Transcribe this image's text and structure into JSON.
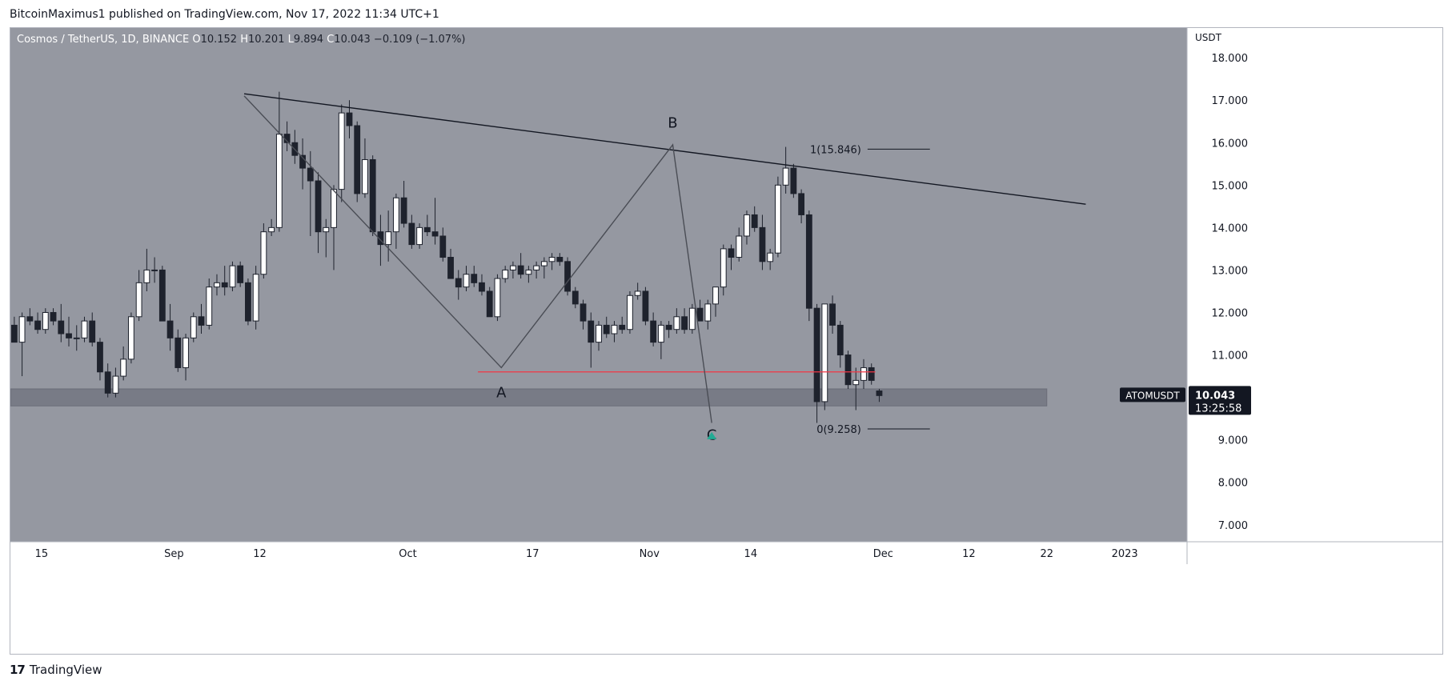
{
  "header": {
    "published_by": "BitcoinMaximus1 published on TradingView.com, Nov 17, 2022 11:34 UTC+1"
  },
  "legend": {
    "symbol": "Cosmos / TetherUS, 1D, BINANCE",
    "o_label": "O",
    "o_value": "10.152",
    "h_label": "H",
    "h_value": "10.201",
    "l_label": "L",
    "l_value": "9.894",
    "c_label": "C",
    "c_value": "10.043",
    "change": "−0.109 (−1.07%)"
  },
  "footer": {
    "logo_mark": "17",
    "brand": "TradingView"
  },
  "colors": {
    "plot_bg": "#9598a1",
    "bull": "#ffffff",
    "bear": "#1e222d",
    "wick": "#1e222d",
    "support_zone": "#787b86",
    "red_line": "#f23645",
    "trend_line": "#131722",
    "wave_line": "#4a4d55",
    "price_tag_bg": "#131722",
    "bottom_marker": "#22ab94"
  },
  "chart_data": {
    "type": "candlestick",
    "title": "Cosmos / TetherUS, 1D, BINANCE",
    "y_axis_unit": "USDT",
    "ylim": [
      6.6,
      18.7
    ],
    "y_ticks": [
      "18.000",
      "17.000",
      "16.000",
      "15.000",
      "14.000",
      "13.000",
      "12.000",
      "11.000",
      "10.000",
      "9.000",
      "8.000",
      "7.000"
    ],
    "y_tick_values": [
      18,
      17,
      16,
      15,
      14,
      13,
      12,
      11,
      10,
      9,
      8,
      7
    ],
    "x_start_date": "2022-08-11",
    "x_end_date": "2023-01-09",
    "x_ticks": [
      {
        "label": "15",
        "date": "2022-08-15"
      },
      {
        "label": "Sep",
        "date": "2022-09-01"
      },
      {
        "label": "12",
        "date": "2022-09-12"
      },
      {
        "label": "Oct",
        "date": "2022-10-01"
      },
      {
        "label": "17",
        "date": "2022-10-17"
      },
      {
        "label": "Nov",
        "date": "2022-11-01"
      },
      {
        "label": "14",
        "date": "2022-11-14"
      },
      {
        "label": "Dec",
        "date": "2022-12-01"
      },
      {
        "label": "12",
        "date": "2022-12-12"
      },
      {
        "label": "22",
        "date": "2022-12-22"
      },
      {
        "label": "2023",
        "date": "2023-01-01"
      }
    ],
    "candles_start": "2022-08-11",
    "candles": [
      [
        11.7,
        11.9,
        11.3,
        11.3
      ],
      [
        11.3,
        12.0,
        10.5,
        11.9
      ],
      [
        11.9,
        12.1,
        11.7,
        11.8
      ],
      [
        11.8,
        12.0,
        11.5,
        11.6
      ],
      [
        11.6,
        12.1,
        11.5,
        12.0
      ],
      [
        12.0,
        12.1,
        11.7,
        11.8
      ],
      [
        11.8,
        12.2,
        11.3,
        11.5
      ],
      [
        11.5,
        11.9,
        11.2,
        11.4
      ],
      [
        11.4,
        11.7,
        11.1,
        11.4
      ],
      [
        11.4,
        11.9,
        11.3,
        11.8
      ],
      [
        11.8,
        12.0,
        11.2,
        11.3
      ],
      [
        11.3,
        11.4,
        10.4,
        10.6
      ],
      [
        10.6,
        10.8,
        10.0,
        10.1
      ],
      [
        10.1,
        10.7,
        10.0,
        10.5
      ],
      [
        10.5,
        11.2,
        10.4,
        10.9
      ],
      [
        10.9,
        12.0,
        10.8,
        11.9
      ],
      [
        11.9,
        13.0,
        11.8,
        12.7
      ],
      [
        12.7,
        13.5,
        12.5,
        13.0
      ],
      [
        13.0,
        13.3,
        12.7,
        13.0
      ],
      [
        13.0,
        13.1,
        11.8,
        11.8
      ],
      [
        11.8,
        12.2,
        11.1,
        11.4
      ],
      [
        11.4,
        11.6,
        10.6,
        10.7
      ],
      [
        10.7,
        11.5,
        10.4,
        11.4
      ],
      [
        11.4,
        12.0,
        11.3,
        11.9
      ],
      [
        11.9,
        12.2,
        11.5,
        11.7
      ],
      [
        11.7,
        12.8,
        11.6,
        12.6
      ],
      [
        12.6,
        12.9,
        12.4,
        12.7
      ],
      [
        12.7,
        13.1,
        12.4,
        12.6
      ],
      [
        12.6,
        13.2,
        12.5,
        13.1
      ],
      [
        13.1,
        13.2,
        12.6,
        12.7
      ],
      [
        12.7,
        12.8,
        11.7,
        11.8
      ],
      [
        11.8,
        13.1,
        11.6,
        12.9
      ],
      [
        12.9,
        14.1,
        12.8,
        13.9
      ],
      [
        13.9,
        14.2,
        13.8,
        14.0
      ],
      [
        14.0,
        17.2,
        13.9,
        16.2
      ],
      [
        16.2,
        16.5,
        15.8,
        16.0
      ],
      [
        16.0,
        16.3,
        15.5,
        15.7
      ],
      [
        15.7,
        16.1,
        14.9,
        15.4
      ],
      [
        15.4,
        15.8,
        13.8,
        15.1
      ],
      [
        15.1,
        15.3,
        13.4,
        13.9
      ],
      [
        13.9,
        14.2,
        13.3,
        14.0
      ],
      [
        14.0,
        15.0,
        13.0,
        14.9
      ],
      [
        14.9,
        16.9,
        14.6,
        16.7
      ],
      [
        16.7,
        17.0,
        16.1,
        16.4
      ],
      [
        16.4,
        16.5,
        14.6,
        14.8
      ],
      [
        14.8,
        16.1,
        14.7,
        15.6
      ],
      [
        15.6,
        15.7,
        13.8,
        13.9
      ],
      [
        13.9,
        14.3,
        13.1,
        13.6
      ],
      [
        13.6,
        14.4,
        13.2,
        13.9
      ],
      [
        13.9,
        14.8,
        13.5,
        14.7
      ],
      [
        14.7,
        15.1,
        14.0,
        14.1
      ],
      [
        14.1,
        14.3,
        13.5,
        13.6
      ],
      [
        13.6,
        14.1,
        13.5,
        14.0
      ],
      [
        14.0,
        14.3,
        13.8,
        13.9
      ],
      [
        13.9,
        14.7,
        13.6,
        13.8
      ],
      [
        13.8,
        14.0,
        13.2,
        13.3
      ],
      [
        13.3,
        13.5,
        12.8,
        12.8
      ],
      [
        12.8,
        13.0,
        12.3,
        12.6
      ],
      [
        12.6,
        13.1,
        12.5,
        12.9
      ],
      [
        12.9,
        13.1,
        12.6,
        12.7
      ],
      [
        12.7,
        12.9,
        12.4,
        12.5
      ],
      [
        12.5,
        12.6,
        11.9,
        11.9
      ],
      [
        11.9,
        12.9,
        11.8,
        12.8
      ],
      [
        12.8,
        13.1,
        12.7,
        13.0
      ],
      [
        13.0,
        13.2,
        12.8,
        13.1
      ],
      [
        13.1,
        13.4,
        12.8,
        12.9
      ],
      [
        12.9,
        13.1,
        12.7,
        13.0
      ],
      [
        13.0,
        13.2,
        12.8,
        13.1
      ],
      [
        13.1,
        13.3,
        12.8,
        13.2
      ],
      [
        13.2,
        13.4,
        13.0,
        13.3
      ],
      [
        13.3,
        13.4,
        13.1,
        13.2
      ],
      [
        13.2,
        13.3,
        12.4,
        12.5
      ],
      [
        12.5,
        12.6,
        12.1,
        12.2
      ],
      [
        12.2,
        12.3,
        11.6,
        11.8
      ],
      [
        11.8,
        12.0,
        10.7,
        11.3
      ],
      [
        11.3,
        11.8,
        11.1,
        11.7
      ],
      [
        11.7,
        11.9,
        11.4,
        11.5
      ],
      [
        11.5,
        11.8,
        11.3,
        11.7
      ],
      [
        11.7,
        11.9,
        11.5,
        11.6
      ],
      [
        11.6,
        12.5,
        11.5,
        12.4
      ],
      [
        12.4,
        12.7,
        12.3,
        12.5
      ],
      [
        12.5,
        12.6,
        11.7,
        11.8
      ],
      [
        11.8,
        12.0,
        11.2,
        11.3
      ],
      [
        11.3,
        11.8,
        10.9,
        11.7
      ],
      [
        11.7,
        11.8,
        11.4,
        11.6
      ],
      [
        11.6,
        12.1,
        11.5,
        11.9
      ],
      [
        11.9,
        12.1,
        11.5,
        11.6
      ],
      [
        11.6,
        12.2,
        11.5,
        12.1
      ],
      [
        12.1,
        12.3,
        11.8,
        11.8
      ],
      [
        11.8,
        12.3,
        11.6,
        12.2
      ],
      [
        12.2,
        12.6,
        11.9,
        12.6
      ],
      [
        12.6,
        13.6,
        12.4,
        13.5
      ],
      [
        13.5,
        13.6,
        13.0,
        13.3
      ],
      [
        13.3,
        14.0,
        13.2,
        13.8
      ],
      [
        13.8,
        14.4,
        13.6,
        14.3
      ],
      [
        14.3,
        14.5,
        13.9,
        14.0
      ],
      [
        14.0,
        14.3,
        13.0,
        13.2
      ],
      [
        13.2,
        13.5,
        13.0,
        13.4
      ],
      [
        13.4,
        15.2,
        13.3,
        15.0
      ],
      [
        15.0,
        15.9,
        14.8,
        15.4
      ],
      [
        15.4,
        15.5,
        14.7,
        14.8
      ],
      [
        14.8,
        14.9,
        14.1,
        14.3
      ],
      [
        14.3,
        14.4,
        11.8,
        12.1
      ],
      [
        12.1,
        12.2,
        9.4,
        9.9
      ],
      [
        9.9,
        12.2,
        9.7,
        12.2
      ],
      [
        12.2,
        12.4,
        11.5,
        11.7
      ],
      [
        11.7,
        11.8,
        10.7,
        11.0
      ],
      [
        11.0,
        11.1,
        10.2,
        10.3
      ],
      [
        10.3,
        10.7,
        9.7,
        10.4
      ],
      [
        10.4,
        10.9,
        10.2,
        10.7
      ],
      [
        10.7,
        10.8,
        10.3,
        10.4
      ],
      [
        10.152,
        10.201,
        9.894,
        10.043
      ]
    ],
    "drawings": {
      "support_zone": {
        "y_low": 9.8,
        "y_high": 10.2,
        "x_start": "2022-08-11",
        "x_end": "2022-12-22"
      },
      "red_level": {
        "y": 10.6,
        "x_start": "2022-10-10",
        "x_end": "2022-11-30"
      },
      "trend_line": {
        "p1": {
          "date": "2022-09-10",
          "y": 17.15
        },
        "p2": {
          "date": "2022-12-27",
          "y": 14.55
        }
      },
      "wave_path": [
        {
          "date": "2022-09-10",
          "y": 17.1
        },
        {
          "date": "2022-10-13",
          "y": 10.7
        },
        {
          "date": "2022-11-04",
          "y": 15.95
        },
        {
          "date": "2022-11-09",
          "y": 9.4
        }
      ],
      "wave_labels": [
        {
          "text": "A",
          "date": "2022-10-13",
          "y": 10.0
        },
        {
          "text": "B",
          "date": "2022-11-04",
          "y": 16.35
        },
        {
          "text": "C",
          "date": "2022-11-09",
          "y": 9.0
        }
      ],
      "fib_levels": [
        {
          "label": "1(15.846)",
          "y": 15.846,
          "x_start": "2022-11-29",
          "x_end": "2022-12-07"
        },
        {
          "label": "0(9.258)",
          "y": 9.258,
          "x_start": "2022-11-29",
          "x_end": "2022-12-07"
        }
      ],
      "bottom_marker": {
        "date": "2022-11-09",
        "y": 9.26
      }
    },
    "price_tag": {
      "symbol": "ATOMUSDT",
      "price": "10.043",
      "countdown": "13:25:58",
      "y": 10.043
    }
  }
}
